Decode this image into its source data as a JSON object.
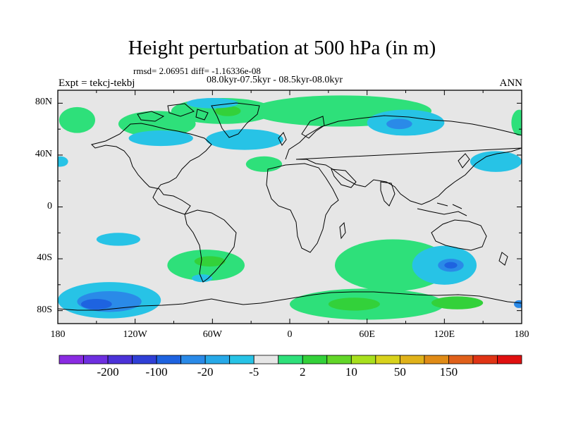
{
  "title": "Height perturbation at 500 hPa (in m)",
  "stats": "rmsd= 2.06951 diff= -1.16336e-08",
  "period": "08.0kyr-07.5kyr - 08.5kyr-08.0kyr",
  "experiment": "Expt = tekcj-tekbj",
  "season": "ANN",
  "map": {
    "projection": "cylindrical-equidistant",
    "lon_range": [
      -180,
      180
    ],
    "lat_range": [
      -90,
      90
    ],
    "lat_ticks": [
      {
        "value": 80,
        "label": "80N"
      },
      {
        "value": 40,
        "label": "40N"
      },
      {
        "value": 0,
        "label": "0"
      },
      {
        "value": -40,
        "label": "40S"
      },
      {
        "value": -80,
        "label": "80S"
      }
    ],
    "lon_ticks": [
      {
        "value": -180,
        "label": "180"
      },
      {
        "value": -120,
        "label": "120W"
      },
      {
        "value": -60,
        "label": "60W"
      },
      {
        "value": 0,
        "label": "0"
      },
      {
        "value": 60,
        "label": "60E"
      },
      {
        "value": 120,
        "label": "120E"
      },
      {
        "value": 180,
        "label": "180"
      }
    ],
    "background_color": "#e6e6e6",
    "coastline_color": "#000000"
  },
  "colorbar": {
    "colors": [
      "#8a2be2",
      "#6e2fe0",
      "#4b32d8",
      "#2f3fd6",
      "#1e63e0",
      "#2a8ae8",
      "#27a9e8",
      "#27c3e6",
      "#e6e6e6",
      "#2ee07a",
      "#33d13a",
      "#62d628",
      "#a8e01d",
      "#d8d21c",
      "#e0b21a",
      "#e08b16",
      "#e0601a",
      "#e03415",
      "#e01010"
    ],
    "labels": [
      "-200",
      "-100",
      "-20",
      "-5",
      "2",
      "10",
      "50",
      "150"
    ]
  },
  "anomalies": [
    {
      "name": "north-atlantic-positive",
      "lon": -52,
      "lat": 74,
      "rx": 40,
      "ry": 10,
      "color": "#2ee07a"
    },
    {
      "name": "greenland-inner-positive",
      "lon": -48,
      "lat": 74,
      "rx": 10,
      "ry": 4,
      "color": "#33d13a"
    },
    {
      "name": "eurasian-arctic-positive",
      "lon": 40,
      "lat": 74,
      "rx": 70,
      "ry": 12,
      "color": "#2ee07a"
    },
    {
      "name": "north-pacific-positive",
      "lon": -165,
      "lat": 67,
      "rx": 14,
      "ry": 10,
      "color": "#2ee07a"
    },
    {
      "name": "far-east-positive",
      "lon": 178,
      "lat": 65,
      "rx": 6,
      "ry": 10,
      "color": "#2ee07a"
    },
    {
      "name": "hudson-positive",
      "lon": -103,
      "lat": 64,
      "rx": 30,
      "ry": 10,
      "color": "#2ee07a"
    },
    {
      "name": "central-atlantic-positive",
      "lon": -20,
      "lat": 33,
      "rx": 14,
      "ry": 6,
      "color": "#2ee07a"
    },
    {
      "name": "siberia-negative",
      "lon": 90,
      "lat": 65,
      "rx": 30,
      "ry": 10,
      "color": "#27c3e6"
    },
    {
      "name": "siberia-inner-negative",
      "lon": 85,
      "lat": 64,
      "rx": 10,
      "ry": 4,
      "color": "#2a8ae8"
    },
    {
      "name": "north-atlantic-negative",
      "lon": -35,
      "lat": 52,
      "rx": 30,
      "ry": 8,
      "color": "#27c3e6"
    },
    {
      "name": "greenland-negative",
      "lon": -60,
      "lat": 80,
      "rx": 20,
      "ry": 4,
      "color": "#27c3e6"
    },
    {
      "name": "north-america-negative",
      "lon": -100,
      "lat": 53,
      "rx": 25,
      "ry": 6,
      "color": "#27c3e6"
    },
    {
      "name": "north-pacific-negative",
      "lon": 160,
      "lat": 35,
      "rx": 20,
      "ry": 8,
      "color": "#27c3e6"
    },
    {
      "name": "east-pacific-negative",
      "lon": -178,
      "lat": 35,
      "rx": 6,
      "ry": 4,
      "color": "#27c3e6"
    },
    {
      "name": "southeast-pacific-negative",
      "lon": -133,
      "lat": -25,
      "rx": 17,
      "ry": 5,
      "color": "#27c3e6"
    },
    {
      "name": "south-america-positive",
      "lon": -65,
      "lat": -45,
      "rx": 30,
      "ry": 12,
      "color": "#2ee07a"
    },
    {
      "name": "south-america-inner-positive",
      "lon": -62,
      "lat": -42,
      "rx": 12,
      "ry": 4,
      "color": "#33d13a"
    },
    {
      "name": "south-indian-positive",
      "lon": 80,
      "lat": -45,
      "rx": 45,
      "ry": 20,
      "color": "#2ee07a"
    },
    {
      "name": "australia-south-negative",
      "lon": 120,
      "lat": -45,
      "rx": 25,
      "ry": 15,
      "color": "#27c3e6"
    },
    {
      "name": "australia-inner-negative",
      "lon": 125,
      "lat": -45,
      "rx": 10,
      "ry": 5,
      "color": "#2a8ae8"
    },
    {
      "name": "australia-core-negative",
      "lon": 125,
      "lat": -45,
      "rx": 5,
      "ry": 2.5,
      "color": "#1e63e0"
    },
    {
      "name": "antarctic-pacific-negative",
      "lon": -140,
      "lat": -72,
      "rx": 40,
      "ry": 14,
      "color": "#27c3e6"
    },
    {
      "name": "antarctic-pacific-inner-negative",
      "lon": -140,
      "lat": -73,
      "rx": 25,
      "ry": 8,
      "color": "#2a8ae8"
    },
    {
      "name": "antarctic-pacific-core-negative",
      "lon": -150,
      "lat": -75,
      "rx": 12,
      "ry": 4,
      "color": "#1e63e0"
    },
    {
      "name": "antarctic-east-positive",
      "lon": 60,
      "lat": -75,
      "rx": 60,
      "ry": 12,
      "color": "#2ee07a"
    },
    {
      "name": "antarctic-east-inner-positive",
      "lon": 50,
      "lat": -75,
      "rx": 20,
      "ry": 5,
      "color": "#33d13a"
    },
    {
      "name": "antarctic-120e-inner-positive",
      "lon": 130,
      "lat": -74,
      "rx": 20,
      "ry": 5,
      "color": "#33d13a"
    },
    {
      "name": "south-america-cape-negative",
      "lon": -68,
      "lat": -55,
      "rx": 8,
      "ry": 3,
      "color": "#27c3e6"
    },
    {
      "name": "antarctic-edge-negative",
      "lon": 178,
      "lat": -75,
      "rx": 4,
      "ry": 3,
      "color": "#2a8ae8"
    }
  ]
}
